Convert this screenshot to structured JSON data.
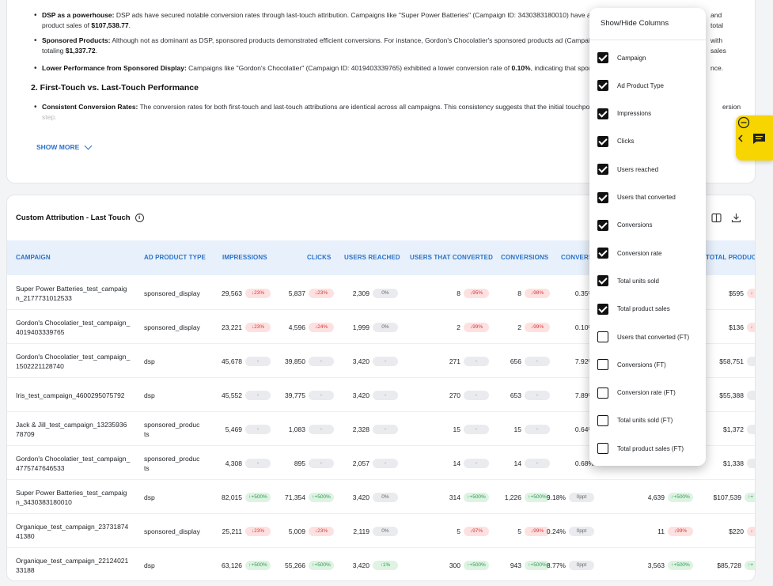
{
  "insights": {
    "bullets_top": [
      {
        "bold": "DSP as a powerhouse:",
        "text": " DSP ads have secured notable conversion rates through last-touch attribution. Campaigns like \"Super Power Batteries\" (Campaign ID: 3430383180010) have attained conversion rat",
        "tail": "and total",
        "line2": "product sales of ",
        "line2_bold": "$107,538.77",
        "line2_end": "."
      },
      {
        "bold": "Sponsored Products:",
        "text": " Although not as dominant as DSP, sponsored products demonstrated efficient conversions. For instance, Gordon's Chocolatier's sponsored products ad (Campaign ID: 47757476465",
        "tail": "with sales",
        "line2": "totaling ",
        "line2_bold": "$1,337.72",
        "line2_end": "."
      },
      {
        "bold": "Lower Performance from Sponsored Display:",
        "text": " Campaigns like \"Gordon's Chocolatier\" (Campaign ID: 4019403339765) exhibited a lower conversion rate of ",
        "bold2": "0.10%",
        "text2": ", indicating that sponsored display ads m",
        "tail": "nce."
      }
    ],
    "section2_title": "2. First-Touch vs. Last-Touch Performance",
    "bullet_consistent": {
      "bold": "Consistent Conversion Rates:",
      "text": " The conversion rates for both first-touch and last-touch attributions are identical across all campaigns. This consistency suggests that the initial touchpoints in the custom",
      "tail": "ersion",
      "line2": "step."
    },
    "show_more": "SHOW MORE"
  },
  "table": {
    "title": "Custom Attribution - Last Touch",
    "info_icon": "info-icon",
    "columns": [
      "CAMPAIGN",
      "AD PRODUCT TYPE",
      "IMPRESSIONS",
      "CLICKS",
      "USERS REACHED",
      "USERS THAT CONVERTED",
      "CONVERSIONS",
      "CONVERSI",
      "TOTAL PRODUCT S"
    ],
    "rows": [
      {
        "campaign": "Super Power Batteries_test_campaign_2177731012533",
        "type": "sponsored_display",
        "impressions": "29,563",
        "imp_b": "↓23%",
        "imp_c": "red",
        "clicks": "5,837",
        "clk_b": "↓23%",
        "clk_c": "red",
        "reached": "2,309",
        "rch_b": "0%",
        "rch_c": "gray",
        "converted": "8",
        "cvt_b": "↓95%",
        "cvt_c": "red",
        "conversions": "8",
        "cnv_b": "↓98%",
        "cnv_c": "red",
        "rate": "0.35%",
        "rate_b": "",
        "units": "",
        "units_b": "",
        "units_c": "",
        "sales": "$595",
        "sales_b": "↓",
        "sales_c": "red"
      },
      {
        "campaign": "Gordon's Chocolatier_test_campaign_4019403339765",
        "type": "sponsored_display",
        "impressions": "23,221",
        "imp_b": "↓23%",
        "imp_c": "red",
        "clicks": "4,596",
        "clk_b": "↓24%",
        "clk_c": "red",
        "reached": "1,999",
        "rch_b": "0%",
        "rch_c": "gray",
        "converted": "2",
        "cvt_b": "↓99%",
        "cvt_c": "red",
        "conversions": "2",
        "cnv_b": "↓99%",
        "cnv_c": "red",
        "rate": "0.10%",
        "rate_b": "",
        "units": "",
        "units_b": "",
        "units_c": "",
        "sales": "$136",
        "sales_b": "↓",
        "sales_c": "red"
      },
      {
        "campaign": "Gordon's Chocolatier_test_campaign_1502221128740",
        "type": "dsp",
        "impressions": "45,678",
        "imp_b": "-",
        "imp_c": "gray",
        "clicks": "39,850",
        "clk_b": "-",
        "clk_c": "gray",
        "reached": "3,420",
        "rch_b": "-",
        "rch_c": "gray",
        "converted": "271",
        "cvt_b": "-",
        "cvt_c": "gray",
        "conversions": "656",
        "cnv_b": "-",
        "cnv_c": "gray",
        "rate": "7.92%",
        "rate_b": "",
        "units": "",
        "units_b": "",
        "units_c": "",
        "sales": "$58,751",
        "sales_b": "",
        "sales_c": "gray"
      },
      {
        "campaign": "Iris_test_campaign_4600295075792",
        "type": "dsp",
        "impressions": "45,552",
        "imp_b": "-",
        "imp_c": "gray",
        "clicks": "39,775",
        "clk_b": "-",
        "clk_c": "gray",
        "reached": "3,420",
        "rch_b": "-",
        "rch_c": "gray",
        "converted": "270",
        "cvt_b": "-",
        "cvt_c": "gray",
        "conversions": "653",
        "cnv_b": "-",
        "cnv_c": "gray",
        "rate": "7.89%",
        "rate_b": "",
        "units": "",
        "units_b": "",
        "units_c": "",
        "sales": "$55,388",
        "sales_b": "",
        "sales_c": "gray"
      },
      {
        "campaign": "Jack & Jill_test_campaign_1323593678709",
        "type": "sponsored_products",
        "impressions": "5,469",
        "imp_b": "-",
        "imp_c": "gray",
        "clicks": "1,083",
        "clk_b": "-",
        "clk_c": "gray",
        "reached": "2,328",
        "rch_b": "-",
        "rch_c": "gray",
        "converted": "15",
        "cvt_b": "-",
        "cvt_c": "gray",
        "conversions": "15",
        "cnv_b": "-",
        "cnv_c": "gray",
        "rate": "0.64%",
        "rate_b": "",
        "units": "",
        "units_b": "",
        "units_c": "",
        "sales": "$1,372",
        "sales_b": "",
        "sales_c": "gray"
      },
      {
        "campaign": "Gordon's Chocolatier_test_campaign_4775747646533",
        "type": "sponsored_products",
        "impressions": "4,308",
        "imp_b": "-",
        "imp_c": "gray",
        "clicks": "895",
        "clk_b": "-",
        "clk_c": "gray",
        "reached": "2,057",
        "rch_b": "-",
        "rch_c": "gray",
        "converted": "14",
        "cvt_b": "-",
        "cvt_c": "gray",
        "conversions": "14",
        "cnv_b": "-",
        "cnv_c": "gray",
        "rate": "0.68%",
        "rate_b": "",
        "units": "",
        "units_b": "",
        "units_c": "",
        "sales": "$1,338",
        "sales_b": "",
        "sales_c": "gray"
      },
      {
        "campaign": "Super Power Batteries_test_campaign_3430383180010",
        "type": "dsp",
        "impressions": "82,015",
        "imp_b": "↑+500%",
        "imp_c": "green",
        "clicks": "71,354",
        "clk_b": "↑+500%",
        "clk_c": "green",
        "reached": "3,420",
        "rch_b": "0%",
        "rch_c": "gray",
        "converted": "314",
        "cvt_b": "↑+500%",
        "cvt_c": "green",
        "conversions": "1,226",
        "cnv_b": "↑+500%",
        "cnv_c": "green",
        "rate": "9.18%",
        "rate_b": "0ppt",
        "units": "4,639",
        "units_b": "↑+500%",
        "units_c": "green",
        "sales": "$107,539",
        "sales_b": "↑+",
        "sales_c": "green"
      },
      {
        "campaign": "Organique_test_campaign_2373187441380",
        "type": "sponsored_display",
        "impressions": "25,211",
        "imp_b": "↓23%",
        "imp_c": "red",
        "clicks": "5,009",
        "clk_b": "↓23%",
        "clk_c": "red",
        "reached": "2,119",
        "rch_b": "0%",
        "rch_c": "gray",
        "converted": "5",
        "cvt_b": "↓97%",
        "cvt_c": "red",
        "conversions": "5",
        "cnv_b": "↓99%",
        "cnv_c": "red",
        "rate": "0.24%",
        "rate_b": "0ppt",
        "units": "11",
        "units_b": "↓99%",
        "units_c": "red",
        "sales": "$220",
        "sales_b": "↓",
        "sales_c": "red"
      },
      {
        "campaign": "Organique_test_campaign_2212402133188",
        "type": "dsp",
        "impressions": "63,126",
        "imp_b": "↑+500%",
        "imp_c": "green",
        "clicks": "55,266",
        "clk_b": "↑+500%",
        "clk_c": "green",
        "reached": "3,420",
        "rch_b": "↑1%",
        "rch_c": "green",
        "converted": "300",
        "cvt_b": "↑+500%",
        "cvt_c": "green",
        "conversions": "943",
        "cnv_b": "↑+500%",
        "cnv_c": "green",
        "rate": "8.77%",
        "rate_b": "0ppt",
        "units": "3,563",
        "units_b": "↑+500%",
        "units_c": "green",
        "sales": "$85,728",
        "sales_b": "↑+",
        "sales_c": "green"
      }
    ]
  },
  "column_menu": {
    "title": "Show/Hide Columns",
    "options": [
      {
        "label": "Campaign",
        "checked": true
      },
      {
        "label": "Ad Product Type",
        "checked": true
      },
      {
        "label": "Impressions",
        "checked": true
      },
      {
        "label": "Clicks",
        "checked": true
      },
      {
        "label": "Users reached",
        "checked": true
      },
      {
        "label": "Users that converted",
        "checked": true
      },
      {
        "label": "Conversions",
        "checked": true
      },
      {
        "label": "Conversion rate",
        "checked": true
      },
      {
        "label": "Total units sold",
        "checked": true
      },
      {
        "label": "Total product sales",
        "checked": true
      },
      {
        "label": "Users that converted (FT)",
        "checked": false
      },
      {
        "label": "Conversions (FT)",
        "checked": false
      },
      {
        "label": "Conversion rate (FT)",
        "checked": false
      },
      {
        "label": "Total units sold (FT)",
        "checked": false
      },
      {
        "label": "Total product sales (FT)",
        "checked": false
      }
    ]
  },
  "colors": {
    "accent": "#2a72c9",
    "chat_tab": "#f6d500",
    "header_bg": "#e8f1fb"
  }
}
